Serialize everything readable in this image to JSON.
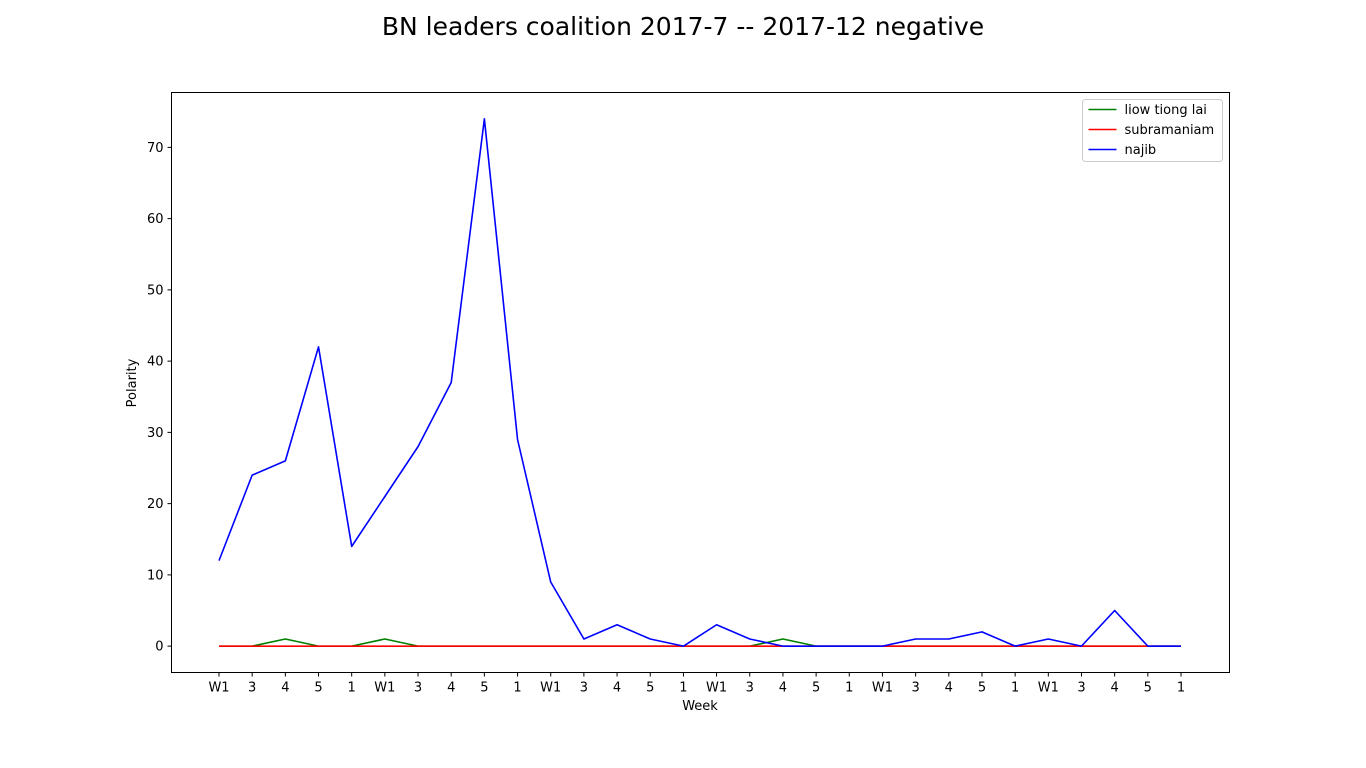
{
  "chart_data": {
    "type": "line",
    "title": "BN leaders coalition 2017-7 -- 2017-12 negative",
    "xlabel": "Week",
    "ylabel": "Polarity",
    "categories": [
      "W1",
      "3",
      "4",
      "5",
      "1",
      "W1",
      "3",
      "4",
      "5",
      "1",
      "W1",
      "3",
      "4",
      "5",
      "1",
      "W1",
      "3",
      "4",
      "5",
      "1",
      "W1",
      "3",
      "4",
      "5",
      "1",
      "W1",
      "3",
      "4",
      "5",
      "1"
    ],
    "yticks": [
      0,
      10,
      20,
      30,
      40,
      50,
      60,
      70
    ],
    "ylim": [
      -3.7,
      77.7
    ],
    "legend_position": "top-right",
    "grid": false,
    "series": [
      {
        "name": "liow tiong lai",
        "color": "#008000",
        "values": [
          0,
          0,
          1,
          0,
          0,
          1,
          0,
          0,
          0,
          0,
          0,
          0,
          0,
          0,
          0,
          0,
          0,
          1,
          0,
          0,
          0,
          0,
          0,
          0,
          0,
          0,
          0,
          0,
          0,
          0
        ]
      },
      {
        "name": "subramaniam",
        "color": "#ff0000",
        "values": [
          0,
          0,
          0,
          0,
          0,
          0,
          0,
          0,
          0,
          0,
          0,
          0,
          0,
          0,
          0,
          0,
          0,
          0,
          0,
          0,
          0,
          0,
          0,
          0,
          0,
          0,
          0,
          0,
          0,
          0
        ]
      },
      {
        "name": "najib",
        "color": "#0000ff",
        "values": [
          12,
          24,
          26,
          42,
          14,
          21,
          28,
          37,
          74,
          29,
          9,
          1,
          3,
          1,
          0,
          3,
          1,
          0,
          0,
          0,
          0,
          1,
          1,
          2,
          0,
          1,
          0,
          5,
          0,
          0
        ]
      }
    ]
  }
}
